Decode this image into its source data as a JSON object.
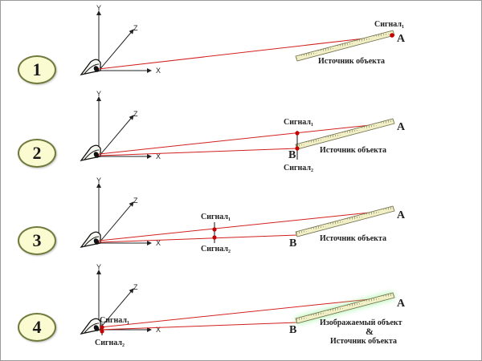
{
  "steps": [
    "1",
    "2",
    "3",
    "4"
  ],
  "axes": {
    "y": "Y",
    "z": "Z",
    "x": "X"
  },
  "labels": {
    "signal1": "Сигнал₁",
    "signal2": "Сигнал₂",
    "point_a": "A",
    "point_b": "B",
    "source": "Источник объекта",
    "imaged": "Изображаемый объект",
    "ampersand": "&"
  },
  "colors": {
    "ray": "#d21f1f",
    "signal_dot": "#c40000",
    "ruler_fill": "#f1efc6",
    "glow": "#7cf07c",
    "step_fill": "#fbfbd2",
    "step_border": "#6f7a3c"
  }
}
